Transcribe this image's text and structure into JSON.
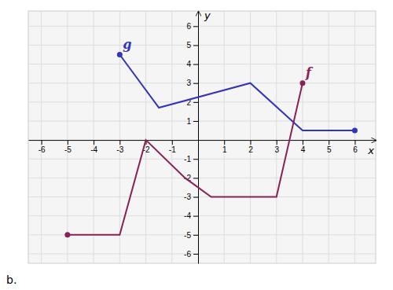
{
  "chart_data": {
    "type": "line",
    "x_label": "x",
    "y_label": "y",
    "annotations": [
      "b."
    ],
    "series": [
      {
        "name": "g",
        "color": "#3333bb",
        "x": [
          -3,
          -1.5,
          2,
          4,
          6
        ],
        "values": [
          4.5,
          1.7,
          3,
          0.5,
          0.5
        ]
      },
      {
        "name": "f",
        "color": "#882255",
        "x": [
          -5,
          -3,
          -2,
          -0.5,
          0.5,
          3,
          4
        ],
        "values": [
          -5,
          -5,
          0,
          -2,
          -3,
          -3,
          3
        ]
      }
    ],
    "xlim": [
      -6.5,
      6.8
    ],
    "ylim": [
      -6.5,
      6.8
    ],
    "xticks": [
      -6,
      -5,
      -4,
      -3,
      -2,
      -1,
      1,
      2,
      3,
      4,
      5,
      6
    ],
    "yticks": [
      -6,
      -5,
      -4,
      -3,
      -2,
      -1,
      1,
      2,
      3,
      4,
      5,
      6
    ],
    "grid": true
  }
}
